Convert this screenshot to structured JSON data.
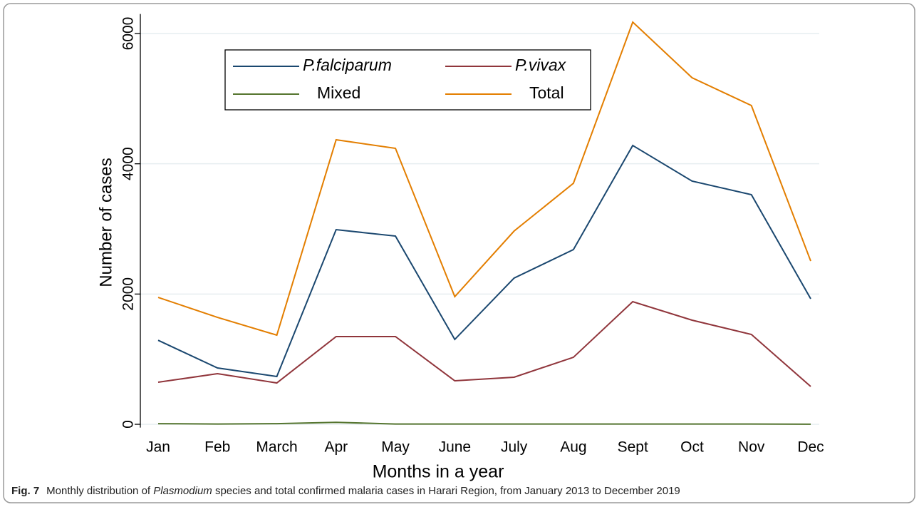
{
  "chart_data": {
    "type": "line",
    "x_label": "Months in a year",
    "y_label": "Number of cases",
    "categories": [
      "Jan",
      "Feb",
      "March",
      "Apr",
      "May",
      "June",
      "July",
      "Aug",
      "Sept",
      "Oct",
      "Nov",
      "Dec"
    ],
    "series": [
      {
        "name": "P.falciparum",
        "color": "#1a476f",
        "values": [
          1290,
          865,
          734,
          2989,
          2890,
          1303,
          2245,
          2683,
          4281,
          3734,
          3526,
          1927
        ]
      },
      {
        "name": "P.vivax",
        "color": "#90353b",
        "values": [
          646,
          777,
          635,
          1347,
          1347,
          668,
          723,
          1029,
          1883,
          1599,
          1380,
          580
        ]
      },
      {
        "name": "Mixed",
        "color": "#55752f",
        "values": [
          10,
          5,
          10,
          30,
          5,
          5,
          5,
          5,
          5,
          5,
          5,
          2
        ]
      },
      {
        "name": "Total",
        "color": "#e37e00",
        "values": [
          1949,
          1642,
          1369,
          4369,
          4237,
          1960,
          2967,
          3701,
          6175,
          5321,
          4894,
          2507
        ]
      }
    ],
    "ylim": [
      -50,
      6300
    ],
    "yticks": [
      0,
      2000,
      4000,
      6000
    ],
    "grid": true
  },
  "caption": {
    "label": "Fig. 7",
    "parts": [
      "Monthly distribution of ",
      "Plasmodium",
      " species and total confirmed malaria cases in Harari Region, from January 2013 to December 2019"
    ]
  }
}
